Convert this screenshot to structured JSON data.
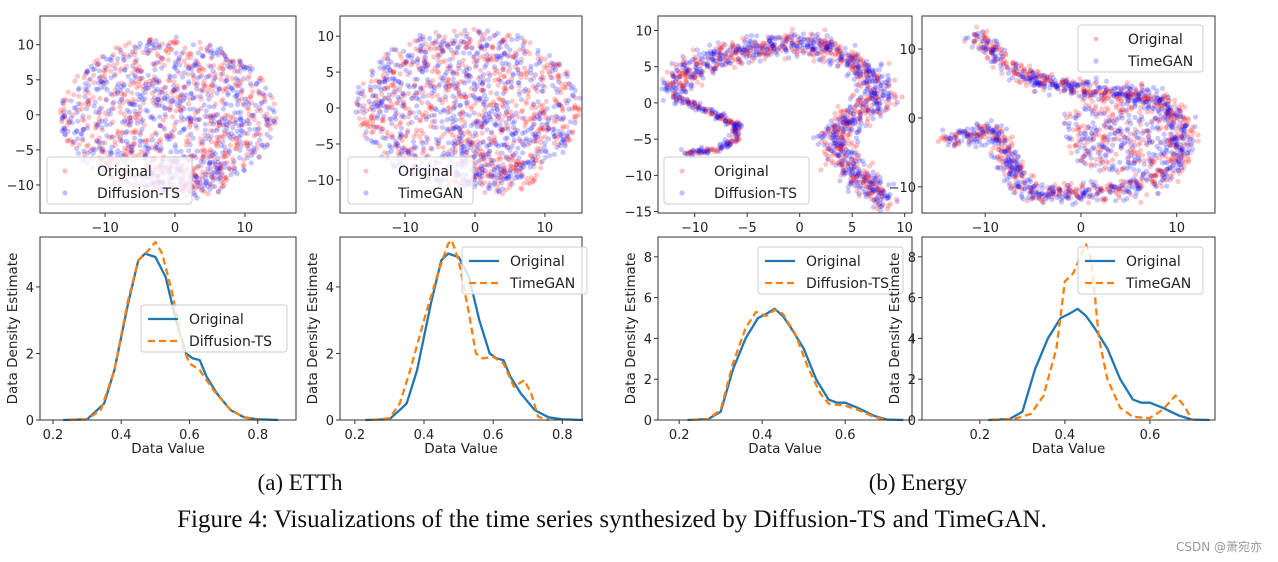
{
  "figure": {
    "subcaption_a": "(a) ETTh",
    "subcaption_b": "(b) Energy",
    "caption": "Figure 4: Visualizations of the time series synthesized by Diffusion-TS and TimeGAN.",
    "watermark": "CSDN @萧宛亦"
  },
  "colors": {
    "original_scatter": "#ff0000",
    "synthetic_scatter": "#0000ff",
    "original_line": "#1f77b4",
    "synthetic_line": "#ff7f0e"
  },
  "chart_data": [
    {
      "type": "scatter",
      "dataset": "ETTh",
      "legend": [
        "Original",
        "Diffusion-TS"
      ],
      "legend_position": "lower-left",
      "xlim": [
        -19.3,
        17.3
      ],
      "ylim": [
        -14,
        14.1
      ],
      "xticks": [
        -10,
        0,
        10
      ],
      "yticks": [
        -10,
        -5,
        0,
        5,
        10
      ],
      "grid": false
    },
    {
      "type": "scatter",
      "dataset": "ETTh",
      "legend": [
        "Original",
        "TimeGAN"
      ],
      "legend_position": "lower-left",
      "xlim": [
        -19.3,
        15.3
      ],
      "ylim": [
        -14.6,
        12.8
      ],
      "xticks": [
        -10,
        0,
        10
      ],
      "yticks": [
        -10,
        -5,
        0,
        5,
        10
      ],
      "grid": false
    },
    {
      "type": "scatter",
      "dataset": "Energy",
      "legend": [
        "Original",
        "Diffusion-TS"
      ],
      "legend_position": "lower-left",
      "xlim": [
        -13.5,
        10.7
      ],
      "ylim": [
        -15.2,
        12.0
      ],
      "xticks": [
        -10,
        -5,
        0,
        5,
        10
      ],
      "yticks": [
        -15,
        -10,
        -5,
        0,
        5,
        10
      ],
      "grid": false
    },
    {
      "type": "scatter",
      "dataset": "Energy",
      "legend": [
        "Original",
        "TimeGAN"
      ],
      "legend_position": "upper-right",
      "xlim": [
        -16.6,
        14
      ],
      "ylim": [
        -13.8,
        14.8
      ],
      "xticks": [
        -10,
        0,
        10
      ],
      "yticks": [
        -10,
        0,
        10
      ],
      "grid": false
    },
    {
      "type": "line",
      "xlabel": "Data Value",
      "ylabel": "Data Density Estimate",
      "legend_position": "center-right",
      "xlim": [
        0.162,
        0.912
      ],
      "ylim": [
        0,
        5.5
      ],
      "xticks": [
        0.2,
        0.4,
        0.6,
        0.8
      ],
      "yticks": [
        0,
        2,
        4
      ],
      "grid": false,
      "series": [
        {
          "name": "Original",
          "style": "solid",
          "x": [
            0.23,
            0.3,
            0.33,
            0.35,
            0.38,
            0.42,
            0.45,
            0.47,
            0.5,
            0.53,
            0.56,
            0.59,
            0.61,
            0.63,
            0.65,
            0.68,
            0.72,
            0.76,
            0.8,
            0.86
          ],
          "y": [
            0,
            0.02,
            0.3,
            0.5,
            1.5,
            3.5,
            4.8,
            5.0,
            4.9,
            4.3,
            3.0,
            2.0,
            1.85,
            1.8,
            1.3,
            0.8,
            0.3,
            0.08,
            0.02,
            0
          ]
        },
        {
          "name": "Diffusion-TS",
          "style": "dashed",
          "x": [
            0.25,
            0.3,
            0.34,
            0.38,
            0.42,
            0.45,
            0.48,
            0.5,
            0.52,
            0.55,
            0.58,
            0.6,
            0.63,
            0.67,
            0.72,
            0.76,
            0.8
          ],
          "y": [
            0,
            0.02,
            0.3,
            1.5,
            3.6,
            4.8,
            5.1,
            5.35,
            5.0,
            3.8,
            2.2,
            1.7,
            1.5,
            0.9,
            0.3,
            0.08,
            0
          ]
        }
      ]
    },
    {
      "type": "line",
      "xlabel": "Data Value",
      "ylabel": "Data Density Estimate",
      "legend_position": "upper-right",
      "xlim": [
        0.157,
        0.857
      ],
      "ylim": [
        0,
        5.5
      ],
      "xticks": [
        0.2,
        0.4,
        0.6,
        0.8
      ],
      "yticks": [
        0,
        2,
        4
      ],
      "grid": false,
      "series": [
        {
          "name": "Original",
          "style": "solid",
          "x": [
            0.23,
            0.3,
            0.33,
            0.35,
            0.38,
            0.42,
            0.45,
            0.47,
            0.5,
            0.53,
            0.56,
            0.59,
            0.61,
            0.63,
            0.65,
            0.68,
            0.72,
            0.76,
            0.8,
            0.86
          ],
          "y": [
            0,
            0.02,
            0.3,
            0.5,
            1.5,
            3.5,
            4.8,
            5.0,
            4.9,
            4.3,
            3.0,
            2.0,
            1.85,
            1.8,
            1.3,
            0.8,
            0.3,
            0.08,
            0.02,
            0
          ]
        },
        {
          "name": "TimeGAN",
          "style": "dashed",
          "x": [
            0.25,
            0.3,
            0.33,
            0.36,
            0.4,
            0.44,
            0.47,
            0.48,
            0.5,
            0.53,
            0.55,
            0.57,
            0.6,
            0.63,
            0.66,
            0.69,
            0.71,
            0.73,
            0.76
          ],
          "y": [
            0,
            0.05,
            0.5,
            1.5,
            3.0,
            4.4,
            5.3,
            5.4,
            4.8,
            3.2,
            2.0,
            1.85,
            1.9,
            1.7,
            1.0,
            1.2,
            0.8,
            0.1,
            0
          ]
        }
      ]
    },
    {
      "type": "line",
      "xlabel": "Data Value",
      "ylabel": "Data Density Estimate",
      "legend_position": "upper-right",
      "xlim": [
        0.149,
        0.761
      ],
      "ylim": [
        0,
        8.97
      ],
      "xticks": [
        0.2,
        0.4,
        0.6
      ],
      "yticks": [
        0,
        2,
        4,
        6,
        8
      ],
      "grid": false,
      "series": [
        {
          "name": "Original",
          "style": "solid",
          "x": [
            0.22,
            0.27,
            0.3,
            0.33,
            0.36,
            0.39,
            0.41,
            0.43,
            0.45,
            0.47,
            0.5,
            0.53,
            0.56,
            0.58,
            0.6,
            0.63,
            0.67,
            0.7,
            0.74
          ],
          "y": [
            0,
            0.05,
            0.4,
            2.5,
            4.0,
            5.0,
            5.2,
            5.45,
            5.1,
            4.5,
            3.5,
            2.0,
            1.0,
            0.85,
            0.85,
            0.6,
            0.2,
            0.02,
            0
          ]
        },
        {
          "name": "Diffusion-TS",
          "style": "dashed",
          "x": [
            0.23,
            0.27,
            0.3,
            0.33,
            0.36,
            0.385,
            0.41,
            0.43,
            0.45,
            0.48,
            0.51,
            0.54,
            0.56,
            0.6,
            0.63,
            0.67,
            0.7
          ],
          "y": [
            0,
            0.05,
            0.5,
            2.8,
            4.5,
            5.3,
            5.1,
            5.4,
            5.2,
            4.2,
            2.6,
            1.3,
            0.8,
            0.7,
            0.5,
            0.15,
            0
          ]
        }
      ]
    },
    {
      "type": "line",
      "xlabel": "Data Value",
      "ylabel": "Data Density Estimate",
      "legend_position": "upper-right",
      "xlim": [
        0.064,
        0.753
      ],
      "ylim": [
        0,
        8.97
      ],
      "xticks": [
        0.2,
        0.4,
        0.6
      ],
      "yticks": [
        0,
        2,
        4,
        6,
        8
      ],
      "grid": false,
      "series": [
        {
          "name": "Original",
          "style": "solid",
          "x": [
            0.22,
            0.27,
            0.3,
            0.33,
            0.36,
            0.39,
            0.41,
            0.43,
            0.45,
            0.47,
            0.5,
            0.53,
            0.56,
            0.58,
            0.6,
            0.63,
            0.67,
            0.7,
            0.74
          ],
          "y": [
            0,
            0.05,
            0.4,
            2.5,
            4.0,
            5.0,
            5.2,
            5.45,
            5.1,
            4.5,
            3.5,
            2.0,
            1.0,
            0.85,
            0.85,
            0.6,
            0.2,
            0.02,
            0
          ]
        },
        {
          "name": "TimeGAN",
          "style": "dashed",
          "x": [
            0.23,
            0.28,
            0.32,
            0.35,
            0.38,
            0.4,
            0.42,
            0.44,
            0.45,
            0.46,
            0.47,
            0.48,
            0.5,
            0.53,
            0.56,
            0.6,
            0.63,
            0.66,
            0.68,
            0.7
          ],
          "y": [
            0,
            0.05,
            0.3,
            1.2,
            3.5,
            6.8,
            7.2,
            8.2,
            8.6,
            8.0,
            6.2,
            4.0,
            2.0,
            0.6,
            0.15,
            0.1,
            0.5,
            1.2,
            0.7,
            0
          ]
        }
      ]
    }
  ]
}
